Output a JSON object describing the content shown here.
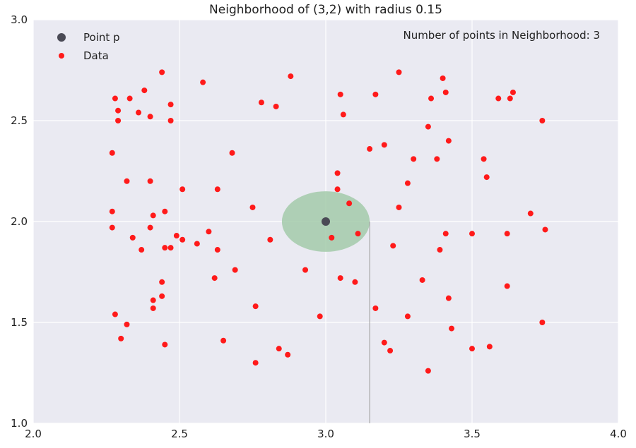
{
  "chart_data": {
    "type": "scatter",
    "title": "Neighborhood of (3,2) with radius 0.15",
    "xlabel": "",
    "ylabel": "",
    "xlim": [
      2.0,
      4.0
    ],
    "ylim": [
      1.0,
      3.0
    ],
    "x_ticks": [
      "2.0",
      "2.5",
      "3.0",
      "3.5",
      "4.0"
    ],
    "y_ticks": [
      "1.0",
      "1.5",
      "2.0",
      "2.5",
      "3.0"
    ],
    "grid": true,
    "legend_position": "top-left",
    "annotation": "Number of points in Neighborhood: 3",
    "neighborhood": {
      "center": [
        3.0,
        2.0
      ],
      "radius": 0.15,
      "color": "#9fc8a5"
    },
    "vertical_marker_x": 3.15,
    "series": [
      {
        "name": "Point p",
        "color": "#4a4a55",
        "points": [
          [
            3.0,
            2.0
          ]
        ]
      },
      {
        "name": "Data",
        "color": "#ff1a1a",
        "points": [
          [
            2.27,
            2.34
          ],
          [
            2.28,
            2.61
          ],
          [
            2.29,
            2.55
          ],
          [
            2.29,
            2.5
          ],
          [
            2.33,
            2.61
          ],
          [
            2.38,
            2.65
          ],
          [
            2.36,
            2.54
          ],
          [
            2.4,
            2.52
          ],
          [
            2.44,
            2.74
          ],
          [
            2.47,
            2.58
          ],
          [
            2.47,
            2.5
          ],
          [
            2.58,
            2.69
          ],
          [
            2.78,
            2.59
          ],
          [
            2.83,
            2.57
          ],
          [
            2.88,
            2.72
          ],
          [
            2.32,
            2.2
          ],
          [
            2.4,
            2.2
          ],
          [
            2.51,
            2.16
          ],
          [
            2.27,
            2.05
          ],
          [
            2.27,
            1.97
          ],
          [
            2.41,
            2.03
          ],
          [
            2.45,
            2.05
          ],
          [
            2.4,
            1.97
          ],
          [
            2.34,
            1.92
          ],
          [
            2.37,
            1.86
          ],
          [
            2.49,
            1.93
          ],
          [
            2.51,
            1.91
          ],
          [
            2.47,
            1.87
          ],
          [
            2.45,
            1.87
          ],
          [
            2.56,
            1.89
          ],
          [
            2.6,
            1.95
          ],
          [
            2.63,
            2.16
          ],
          [
            2.68,
            2.34
          ],
          [
            2.63,
            1.86
          ],
          [
            2.62,
            1.72
          ],
          [
            2.69,
            1.76
          ],
          [
            2.44,
            1.7
          ],
          [
            2.44,
            1.63
          ],
          [
            2.41,
            1.61
          ],
          [
            2.41,
            1.57
          ],
          [
            2.28,
            1.54
          ],
          [
            2.32,
            1.49
          ],
          [
            2.3,
            1.42
          ],
          [
            2.45,
            1.39
          ],
          [
            2.65,
            1.41
          ],
          [
            2.76,
            1.58
          ],
          [
            2.76,
            1.3
          ],
          [
            2.84,
            1.37
          ],
          [
            2.87,
            1.34
          ],
          [
            2.75,
            2.07
          ],
          [
            2.81,
            1.91
          ],
          [
            2.93,
            1.76
          ],
          [
            2.98,
            1.53
          ],
          [
            3.02,
            1.92
          ],
          [
            3.04,
            2.24
          ],
          [
            3.04,
            2.16
          ],
          [
            3.08,
            2.09
          ],
          [
            3.11,
            1.94
          ],
          [
            3.05,
            1.72
          ],
          [
            3.1,
            1.7
          ],
          [
            3.05,
            2.63
          ],
          [
            3.06,
            2.53
          ],
          [
            3.15,
            2.36
          ],
          [
            3.17,
            2.63
          ],
          [
            3.2,
            2.38
          ],
          [
            3.25,
            2.74
          ],
          [
            3.35,
            2.47
          ],
          [
            3.36,
            2.61
          ],
          [
            3.4,
            2.71
          ],
          [
            3.41,
            2.64
          ],
          [
            3.3,
            2.31
          ],
          [
            3.38,
            2.31
          ],
          [
            3.42,
            2.4
          ],
          [
            3.28,
            2.19
          ],
          [
            3.25,
            2.07
          ],
          [
            3.23,
            1.88
          ],
          [
            3.39,
            1.86
          ],
          [
            3.41,
            1.94
          ],
          [
            3.17,
            1.57
          ],
          [
            3.28,
            1.53
          ],
          [
            3.33,
            1.71
          ],
          [
            3.42,
            1.62
          ],
          [
            3.43,
            1.47
          ],
          [
            3.2,
            1.4
          ],
          [
            3.22,
            1.36
          ],
          [
            3.35,
            1.26
          ],
          [
            3.5,
            1.37
          ],
          [
            3.56,
            1.38
          ],
          [
            3.59,
            2.61
          ],
          [
            3.63,
            2.61
          ],
          [
            3.64,
            2.64
          ],
          [
            3.54,
            2.31
          ],
          [
            3.55,
            2.22
          ],
          [
            3.5,
            1.94
          ],
          [
            3.62,
            1.94
          ],
          [
            3.62,
            1.68
          ],
          [
            3.7,
            2.04
          ],
          [
            3.74,
            2.5
          ],
          [
            3.75,
            1.96
          ],
          [
            3.74,
            1.5
          ]
        ]
      }
    ]
  }
}
